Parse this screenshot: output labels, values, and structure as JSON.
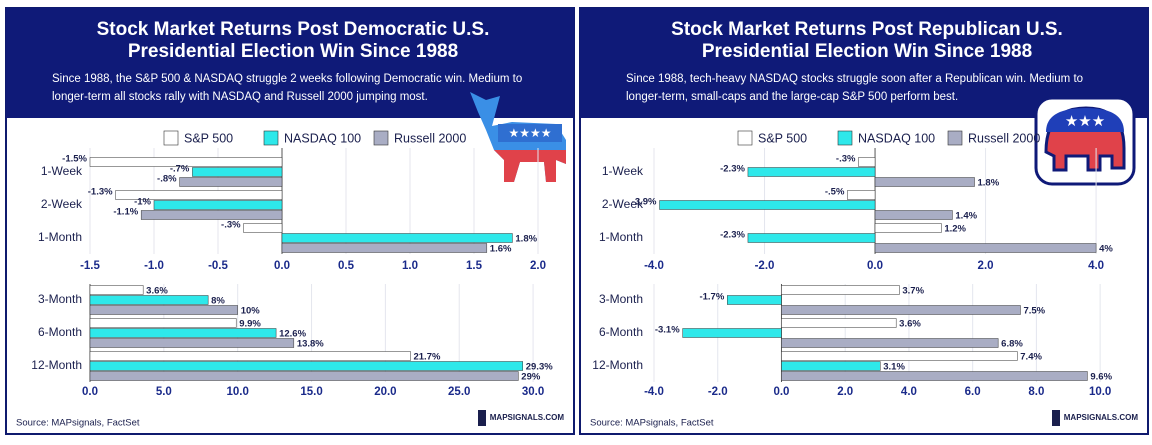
{
  "chart_data": [
    {
      "type": "bar",
      "orientation": "horizontal",
      "title": [
        "Stock Market Returns Post Democratic U.S.",
        "Presidential Election Win Since 1988"
      ],
      "subtitle": [
        "Since 1988, the S&P 500 & NASDAQ struggle 2 weeks following Democratic win. Medium to",
        "longer-term all stocks rally with NASDAQ and Russell 2000 jumping most."
      ],
      "legend": [
        {
          "name": "S&P 500",
          "color": "#ffffff"
        },
        {
          "name": "NASDAQ 100",
          "color": "#2ee8ea"
        },
        {
          "name": "Russell 2000",
          "color": "#a9adc4"
        }
      ],
      "panels": [
        {
          "categories": [
            "1-Week",
            "2-Week",
            "1-Month"
          ],
          "series": [
            {
              "values": [
                -1.5,
                -1.3,
                -0.3
              ],
              "value_labels": [
                "-1.5%",
                "-1.3%",
                "-.3%"
              ]
            },
            {
              "values": [
                -0.7,
                -1,
                1.8
              ],
              "value_labels": [
                "-.7%",
                "-1%",
                "1.8%"
              ]
            },
            {
              "values": [
                -0.8,
                -1.1,
                1.6
              ],
              "value_labels": [
                "-.8%",
                "-1.1%",
                "1.6%"
              ]
            }
          ],
          "xlim": [
            -1.5,
            2.25
          ],
          "xticks": [
            -1.5,
            {
              "value": -1,
              "label": "-1.0"
            },
            -0.5,
            {
              "value": 0,
              "label": "0.0"
            },
            0.5,
            {
              "value": 1,
              "label": "1.0"
            },
            1.5,
            {
              "value": 2,
              "label": "2.0"
            }
          ]
        },
        {
          "categories": [
            "3-Month",
            "6-Month",
            "12-Month"
          ],
          "series": [
            {
              "values": [
                3.6,
                9.9,
                21.7
              ],
              "value_labels": [
                "3.6%",
                "9.9%",
                "21.7%"
              ]
            },
            {
              "values": [
                8,
                12.6,
                29.3
              ],
              "value_labels": [
                "8%",
                "12.6%",
                "29.3%"
              ]
            },
            {
              "values": [
                10,
                13.8,
                29
              ],
              "value_labels": [
                "10%",
                "13.8%",
                "29%"
              ]
            }
          ],
          "xlim": [
            0,
            32.5
          ],
          "xticks": [
            {
              "value": 0,
              "label": "0.0"
            },
            {
              "value": 5,
              "label": "5.0"
            },
            {
              "value": 10,
              "label": "10.0"
            },
            {
              "value": 15,
              "label": "15.0"
            },
            {
              "value": 20,
              "label": "20.0"
            },
            {
              "value": 25,
              "label": "25.0"
            },
            {
              "value": 30,
              "label": "30.0"
            }
          ]
        }
      ],
      "source": "Source: MAPsignals, FactSet",
      "brand": "MAPSIGNALS.COM"
    },
    {
      "type": "bar",
      "orientation": "horizontal",
      "title": [
        "Stock Market Returns Post Republican U.S.",
        "Presidential Election Win Since 1988"
      ],
      "subtitle": [
        "Since 1988, tech-heavy NASDAQ stocks struggle soon after a Republican win. Medium to",
        "longer-term, small-caps and the large-cap S&P 500 perform best."
      ],
      "legend": [
        {
          "name": "S&P 500",
          "color": "#ffffff"
        },
        {
          "name": "NASDAQ 100",
          "color": "#2ee8ea"
        },
        {
          "name": "Russell 2000",
          "color": "#a9adc4"
        }
      ],
      "panels": [
        {
          "categories": [
            "1-Week",
            "2-Week",
            "1-Month"
          ],
          "series": [
            {
              "values": [
                -0.3,
                -0.5,
                1.2
              ],
              "value_labels": [
                "-.3%",
                "-.5%",
                "1.2%"
              ]
            },
            {
              "values": [
                -2.3,
                -3.9,
                -2.3
              ],
              "value_labels": [
                "-2.3%",
                "-3.9%",
                "-2.3%"
              ]
            },
            {
              "values": [
                1.8,
                1.4,
                4
              ],
              "value_labels": [
                "1.8%",
                "1.4%",
                "4%"
              ]
            }
          ],
          "xlim": [
            -4,
            4.65
          ],
          "xticks": [
            {
              "value": -4,
              "label": "-4.0"
            },
            {
              "value": -2,
              "label": "-2.0"
            },
            {
              "value": 0,
              "label": "0.0"
            },
            {
              "value": 2,
              "label": "2.0"
            },
            {
              "value": 4,
              "label": "4.0"
            }
          ]
        },
        {
          "categories": [
            "3-Month",
            "6-Month",
            "12-Month"
          ],
          "series": [
            {
              "values": [
                3.7,
                3.6,
                7.4
              ],
              "value_labels": [
                "3.7%",
                "3.6%",
                "7.4%"
              ]
            },
            {
              "values": [
                -1.7,
                -3.1,
                3.1
              ],
              "value_labels": [
                "-1.7%",
                "-3.1%",
                "3.1%"
              ]
            },
            {
              "values": [
                7.5,
                6.8,
                9.6
              ],
              "value_labels": [
                "7.5%",
                "6.8%",
                "9.6%"
              ]
            }
          ],
          "xlim": [
            -4,
            11
          ],
          "xticks": [
            {
              "value": -4,
              "label": "-4.0"
            },
            {
              "value": -2,
              "label": "-2.0"
            },
            {
              "value": 0,
              "label": "0.0"
            },
            {
              "value": 2,
              "label": "2.0"
            },
            {
              "value": 4,
              "label": "4.0"
            },
            {
              "value": 6,
              "label": "6.0"
            },
            {
              "value": 8,
              "label": "8.0"
            },
            {
              "value": 10,
              "label": "10.0"
            }
          ]
        }
      ],
      "source": "Source: MAPsignals, FactSet",
      "brand": "MAPSIGNALS.COM"
    }
  ]
}
